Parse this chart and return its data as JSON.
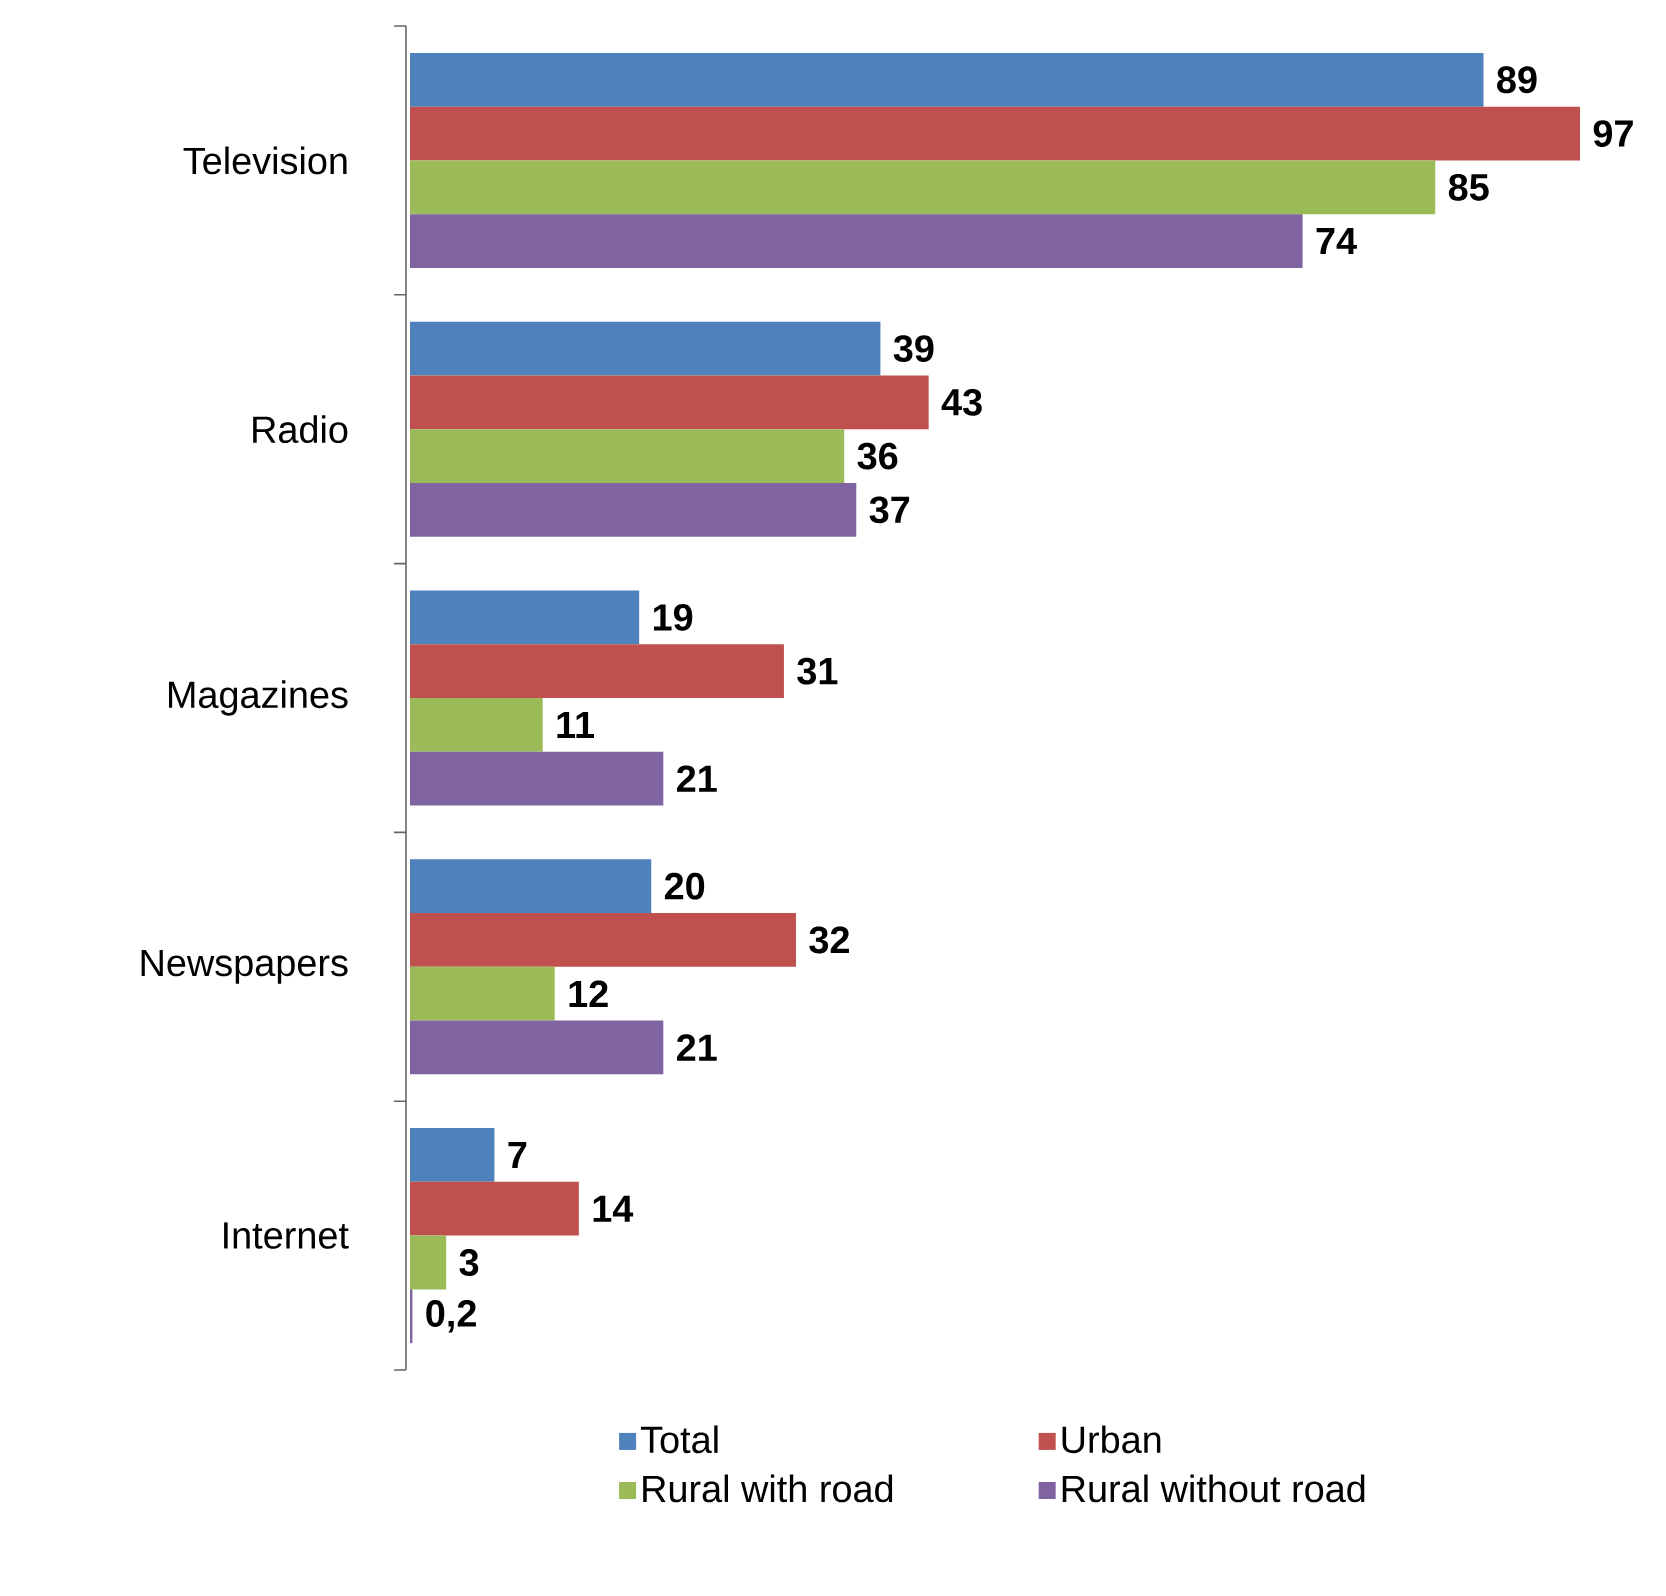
{
  "chart_data": {
    "type": "bar",
    "orientation": "horizontal",
    "categories": [
      "Television",
      "Radio",
      "Magazines",
      "Newspapers",
      "Internet"
    ],
    "tick_labels": "y",
    "legend": "bottom",
    "series": [
      {
        "name": "Total",
        "color": "#4f81bd",
        "values": [
          89,
          39,
          19,
          20,
          7
        ],
        "value_labels": [
          "89",
          "39",
          "19",
          "20",
          "7"
        ]
      },
      {
        "name": "Urban",
        "color": "#c0504d",
        "values": [
          97,
          43,
          31,
          32,
          14
        ],
        "value_labels": [
          "97",
          "43",
          "31",
          "32",
          "14"
        ]
      },
      {
        "name": "Rural with road",
        "color": "#9bbb59",
        "values": [
          85,
          36,
          11,
          12,
          3
        ],
        "value_labels": [
          "85",
          "36",
          "11",
          "12",
          "3"
        ]
      },
      {
        "name": "Rural without road",
        "color": "#8064a2",
        "values": [
          74,
          37,
          21,
          21,
          0.2
        ],
        "value_labels": [
          "74",
          "37",
          "21",
          "21",
          "0,2"
        ]
      }
    ]
  }
}
